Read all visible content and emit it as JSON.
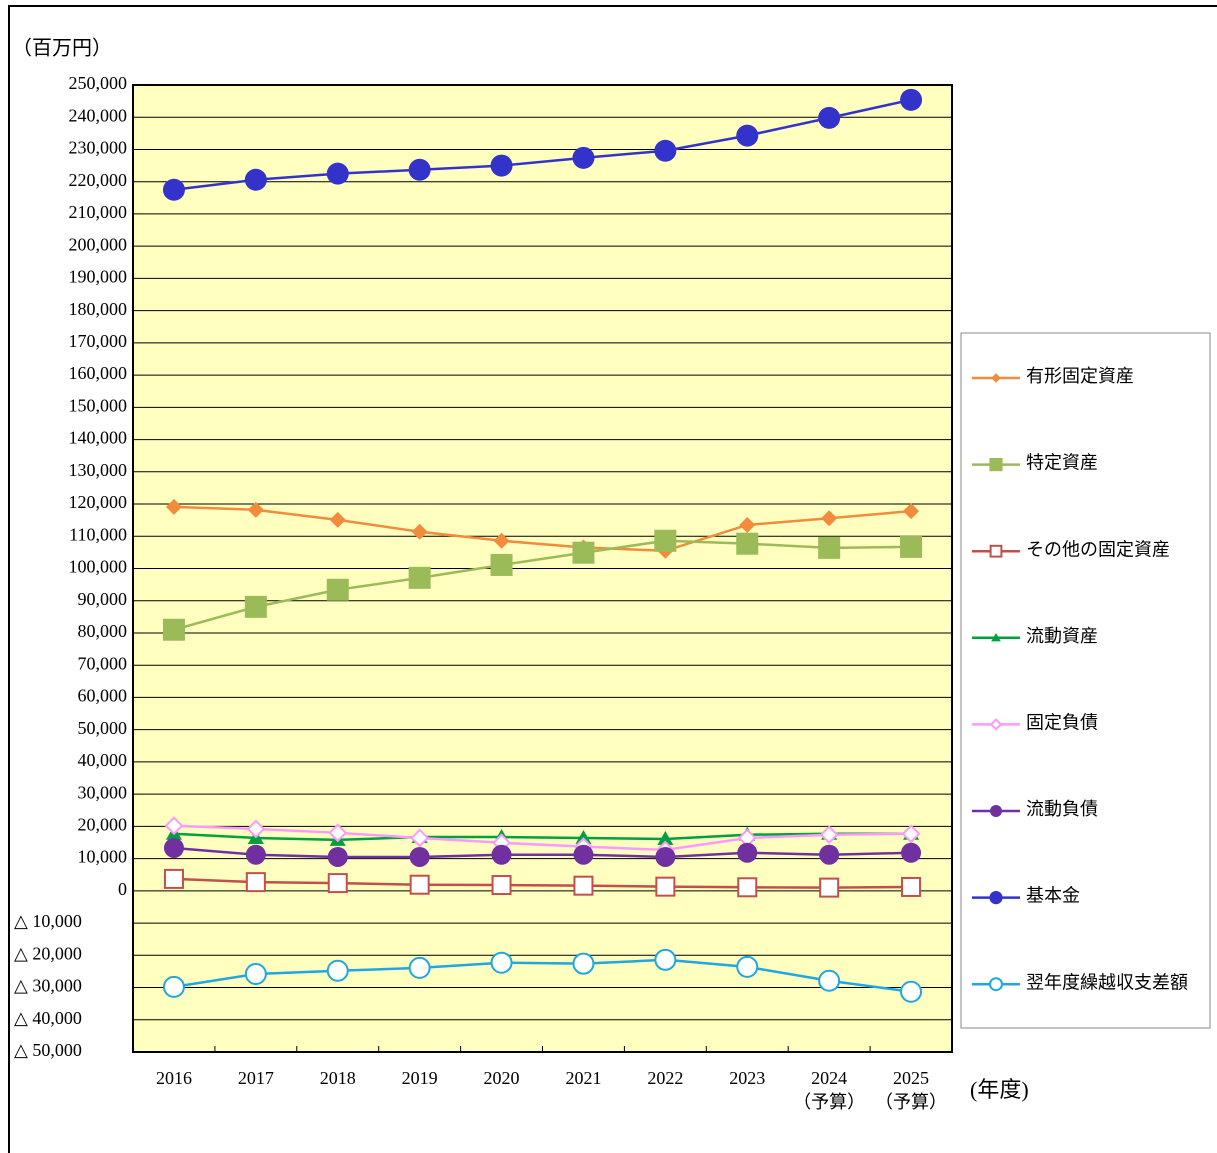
{
  "chart_data": {
    "type": "line",
    "y_axis_label": "（百万円）",
    "x_axis_label": "(年度)",
    "categories": [
      "2016",
      "2017",
      "2018",
      "2019",
      "2020",
      "2021",
      "2022",
      "2023",
      "2024\n（予算）",
      "2025\n（予算）"
    ],
    "ylim": [
      -50000,
      250000
    ],
    "yticks": [
      {
        "value": -50000,
        "label": "△ 50,000"
      },
      {
        "value": -40000,
        "label": "△ 40,000"
      },
      {
        "value": -30000,
        "label": "△ 30,000"
      },
      {
        "value": -20000,
        "label": "△ 20,000"
      },
      {
        "value": -10000,
        "label": "△ 10,000"
      },
      0,
      {
        "value": 10000,
        "label": "10,000"
      },
      {
        "value": 20000,
        "label": "20,000"
      },
      {
        "value": 30000,
        "label": "30,000"
      },
      {
        "value": 40000,
        "label": "40,000"
      },
      {
        "value": 50000,
        "label": "50,000"
      },
      {
        "value": 60000,
        "label": "60,000"
      },
      {
        "value": 70000,
        "label": "70,000"
      },
      {
        "value": 80000,
        "label": "80,000"
      },
      {
        "value": 90000,
        "label": "90,000"
      },
      {
        "value": 100000,
        "label": "100,000"
      },
      {
        "value": 110000,
        "label": "110,000"
      },
      {
        "value": 120000,
        "label": "120,000"
      },
      {
        "value": 130000,
        "label": "130,000"
      },
      {
        "value": 140000,
        "label": "140,000"
      },
      {
        "value": 150000,
        "label": "150,000"
      },
      {
        "value": 160000,
        "label": "160,000"
      },
      {
        "value": 170000,
        "label": "170,000"
      },
      {
        "value": 180000,
        "label": "180,000"
      },
      {
        "value": 190000,
        "label": "190,000"
      },
      {
        "value": 200000,
        "label": "200,000"
      },
      {
        "value": 210000,
        "label": "210,000"
      },
      {
        "value": 220000,
        "label": "220,000"
      },
      {
        "value": 230000,
        "label": "230,000"
      },
      {
        "value": 240000,
        "label": "240,000"
      },
      {
        "value": 250000,
        "label": "250,000"
      }
    ],
    "grid": true,
    "legend": "right",
    "series": [
      {
        "name": "有形固定資産",
        "color": "#f28c3c",
        "marker": "diamond",
        "values": [
          119100,
          118200,
          115100,
          111400,
          108600,
          106500,
          105500,
          113500,
          115600,
          117800
        ]
      },
      {
        "name": "特定資産",
        "color": "#9bbb59",
        "marker": "square",
        "values": [
          81000,
          88100,
          93400,
          97100,
          101100,
          104900,
          108600,
          107700,
          106400,
          106700
        ]
      },
      {
        "name": "その他の固定資産",
        "color": "#c0504d",
        "marker": "open-square",
        "values": [
          3700,
          2700,
          2400,
          1900,
          1800,
          1600,
          1300,
          1100,
          1000,
          1200
        ]
      },
      {
        "name": "流動資産",
        "color": "#00a040",
        "marker": "triangle",
        "values": [
          17700,
          16400,
          15800,
          16700,
          16700,
          16400,
          16100,
          17400,
          17700,
          17700
        ]
      },
      {
        "name": "固定負債",
        "color": "#ff99ff",
        "marker": "open-diamond",
        "values": [
          20200,
          19200,
          18000,
          16400,
          14900,
          13700,
          12700,
          16400,
          17400,
          17700
        ]
      },
      {
        "name": "流動負債",
        "color": "#7030a0",
        "marker": "circle",
        "values": [
          13300,
          11200,
          10500,
          10500,
          11200,
          11200,
          10500,
          11800,
          11200,
          11800
        ]
      },
      {
        "name": "基本金",
        "color": "#3333cc",
        "marker": "big-circle",
        "values": [
          217500,
          220600,
          222500,
          223700,
          225000,
          227400,
          229600,
          234300,
          239800,
          245400
        ]
      },
      {
        "name": "翌年度繰越収支差額",
        "color": "#1fa7e1",
        "marker": "open-circle",
        "values": [
          -29800,
          -25800,
          -24800,
          -23900,
          -22300,
          -22600,
          -21400,
          -23600,
          -27900,
          -31300
        ]
      }
    ]
  }
}
